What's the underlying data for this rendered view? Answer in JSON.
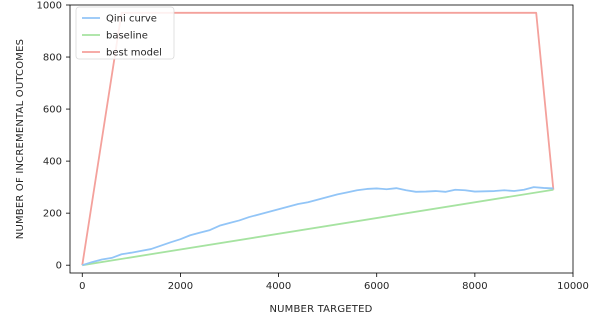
{
  "chart_data": {
    "type": "line",
    "title": "",
    "xlabel": "NUMBER TARGETED",
    "ylabel": "NUMBER OF INCREMENTAL OUTCOMES",
    "xlim": [
      -250,
      10000
    ],
    "ylim": [
      -30,
      1000
    ],
    "xticks": [
      0,
      2000,
      4000,
      6000,
      8000,
      10000
    ],
    "yticks": [
      0,
      200,
      400,
      600,
      800,
      1000
    ],
    "grid": false,
    "legend_position": "top-left",
    "series": [
      {
        "name": "Qini curve",
        "color": "#92c5f7",
        "x": [
          0,
          200,
          400,
          600,
          800,
          1000,
          1200,
          1400,
          1600,
          1800,
          2000,
          2200,
          2400,
          2600,
          2800,
          3000,
          3200,
          3400,
          3600,
          3800,
          4000,
          4200,
          4400,
          4600,
          4800,
          5000,
          5200,
          5400,
          5600,
          5800,
          6000,
          6200,
          6400,
          6600,
          6800,
          7000,
          7200,
          7400,
          7600,
          7800,
          8000,
          8200,
          8400,
          8600,
          8800,
          9000,
          9200,
          9400,
          9600
        ],
        "y": [
          0,
          12,
          22,
          28,
          42,
          48,
          55,
          62,
          75,
          88,
          100,
          115,
          125,
          135,
          152,
          162,
          172,
          185,
          195,
          205,
          215,
          225,
          235,
          242,
          252,
          262,
          272,
          280,
          288,
          293,
          295,
          292,
          296,
          288,
          282,
          283,
          285,
          282,
          290,
          288,
          283,
          284,
          285,
          288,
          285,
          290,
          300,
          297,
          295
        ]
      },
      {
        "name": "baseline",
        "color": "#a6e3a1",
        "x": [
          0,
          9600
        ],
        "y": [
          0,
          290
        ]
      },
      {
        "name": "best model",
        "color": "#f4a19c",
        "x": [
          0,
          800,
          9250,
          9600
        ],
        "y": [
          0,
          970,
          970,
          290
        ]
      }
    ]
  }
}
